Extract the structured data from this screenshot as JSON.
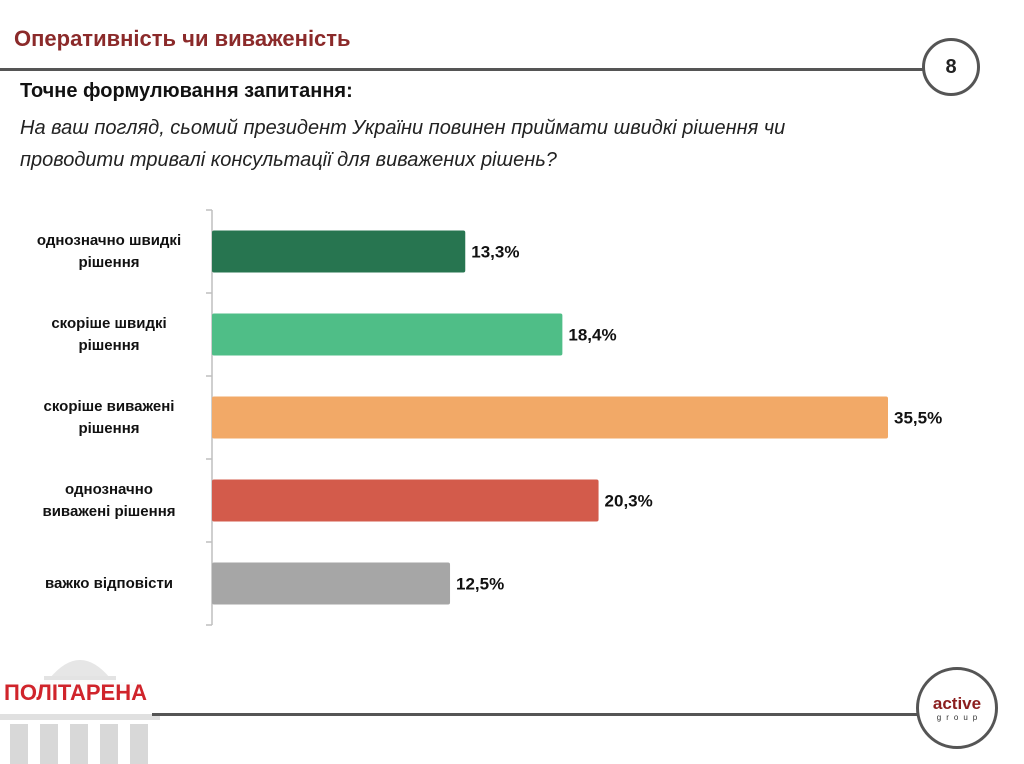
{
  "header": {
    "title": "Оперативність чи виваженість",
    "page_number": "8"
  },
  "question": {
    "heading": "Точне формулювання запитання:",
    "line1": "На ваш погляд, сьомий президент України повинен приймати швидкі рішення чи",
    "line2": "проводити тривалі консультації для виважених рішень?"
  },
  "chart_data": {
    "type": "bar",
    "orientation": "horizontal",
    "categories": [
      [
        "однозначно швидкі",
        "рішення"
      ],
      [
        "скоріше швидкі",
        "рішення"
      ],
      [
        "скоріше виважені",
        "рішення"
      ],
      [
        "однозначно",
        "виважені рішення"
      ],
      [
        "важко відповісти"
      ]
    ],
    "values": [
      13.3,
      18.4,
      35.5,
      20.3,
      12.5
    ],
    "value_labels": [
      "13,3%",
      "18,4%",
      "35,5%",
      "20,3%",
      "12,5%"
    ],
    "colors": [
      "#277550",
      "#4fbe87",
      "#f2a967",
      "#d35b4b",
      "#a6a6a6"
    ],
    "xlim": [
      0,
      35.5
    ],
    "grid": false
  },
  "logos": {
    "left_brand": "ПОЛІТАРЕНА",
    "right_brand_main": "active",
    "right_brand_sub": "group"
  }
}
